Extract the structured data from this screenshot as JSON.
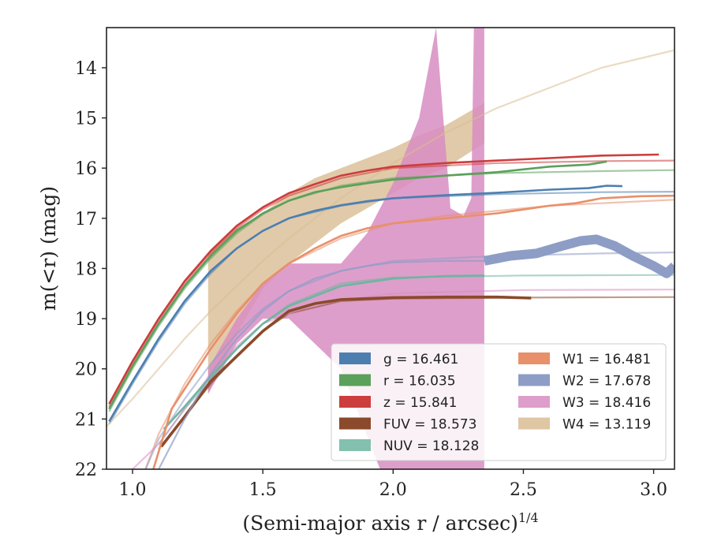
{
  "chart_data": {
    "type": "line",
    "title": "",
    "xlabel": "(Semi-major axis r / arcsec)",
    "xlabel_sup": "1/4",
    "ylabel": "m(<r) (mag)",
    "xlim": [
      0.9,
      3.08
    ],
    "ylim": [
      22.0,
      13.2
    ],
    "y_inverted": true,
    "grid": false,
    "legend_placement": "lower-right",
    "x_ticks": [
      "1.0",
      "1.5",
      "2.0",
      "2.5",
      "3.0"
    ],
    "x_tick_values": [
      1.0,
      1.5,
      2.0,
      2.5,
      3.0
    ],
    "y_ticks": [
      "14",
      "15",
      "16",
      "17",
      "18",
      "19",
      "20",
      "21",
      "22"
    ],
    "y_tick_values": [
      14,
      15,
      16,
      17,
      18,
      19,
      20,
      21,
      22
    ],
    "series": [
      {
        "name": "g",
        "legend": "g = 16.461",
        "color": "#4c7fb0",
        "data": [
          [
            0.91,
            21.05
          ],
          [
            1.0,
            20.25
          ],
          [
            1.1,
            19.4
          ],
          [
            1.2,
            18.65
          ],
          [
            1.3,
            18.05
          ],
          [
            1.4,
            17.6
          ],
          [
            1.5,
            17.25
          ],
          [
            1.6,
            17.0
          ],
          [
            1.7,
            16.85
          ],
          [
            1.8,
            16.74
          ],
          [
            1.9,
            16.66
          ],
          [
            2.0,
            16.6
          ],
          [
            2.2,
            16.54
          ],
          [
            2.4,
            16.49
          ],
          [
            2.6,
            16.43
          ],
          [
            2.75,
            16.4
          ],
          [
            2.82,
            16.35
          ],
          [
            2.88,
            16.36
          ]
        ],
        "model": [
          [
            0.91,
            21.1
          ],
          [
            1.0,
            20.3
          ],
          [
            1.1,
            19.45
          ],
          [
            1.2,
            18.7
          ],
          [
            1.3,
            18.1
          ],
          [
            1.4,
            17.6
          ],
          [
            1.5,
            17.25
          ],
          [
            1.6,
            17.0
          ],
          [
            1.8,
            16.75
          ],
          [
            2.0,
            16.6
          ],
          [
            2.4,
            16.52
          ],
          [
            2.8,
            16.48
          ],
          [
            3.08,
            16.47
          ]
        ]
      },
      {
        "name": "r",
        "legend": "r = 16.035",
        "color": "#5ba05b",
        "data": [
          [
            0.91,
            20.8
          ],
          [
            1.0,
            19.95
          ],
          [
            1.1,
            19.1
          ],
          [
            1.2,
            18.35
          ],
          [
            1.3,
            17.75
          ],
          [
            1.4,
            17.25
          ],
          [
            1.5,
            16.9
          ],
          [
            1.6,
            16.65
          ],
          [
            1.7,
            16.48
          ],
          [
            1.8,
            16.38
          ],
          [
            1.9,
            16.3
          ],
          [
            2.0,
            16.23
          ],
          [
            2.2,
            16.15
          ],
          [
            2.4,
            16.08
          ],
          [
            2.6,
            15.97
          ],
          [
            2.75,
            15.93
          ],
          [
            2.82,
            15.87
          ]
        ],
        "model": [
          [
            0.91,
            20.85
          ],
          [
            1.0,
            20.0
          ],
          [
            1.1,
            19.15
          ],
          [
            1.2,
            18.4
          ],
          [
            1.3,
            17.8
          ],
          [
            1.4,
            17.3
          ],
          [
            1.5,
            16.92
          ],
          [
            1.6,
            16.65
          ],
          [
            1.8,
            16.35
          ],
          [
            2.0,
            16.2
          ],
          [
            2.4,
            16.1
          ],
          [
            2.8,
            16.06
          ],
          [
            3.08,
            16.04
          ]
        ]
      },
      {
        "name": "z",
        "legend": "z = 15.841",
        "color": "#cc3d3d",
        "data": [
          [
            0.91,
            20.7
          ],
          [
            1.0,
            19.85
          ],
          [
            1.1,
            19.0
          ],
          [
            1.2,
            18.25
          ],
          [
            1.3,
            17.65
          ],
          [
            1.4,
            17.15
          ],
          [
            1.5,
            16.78
          ],
          [
            1.6,
            16.5
          ],
          [
            1.7,
            16.32
          ],
          [
            1.8,
            16.15
          ],
          [
            1.9,
            16.05
          ],
          [
            2.0,
            15.97
          ],
          [
            2.2,
            15.9
          ],
          [
            2.4,
            15.85
          ],
          [
            2.6,
            15.8
          ],
          [
            2.8,
            15.75
          ],
          [
            3.02,
            15.73
          ]
        ],
        "model": [
          [
            0.91,
            20.75
          ],
          [
            1.0,
            19.9
          ],
          [
            1.1,
            19.05
          ],
          [
            1.2,
            18.3
          ],
          [
            1.3,
            17.7
          ],
          [
            1.4,
            17.2
          ],
          [
            1.5,
            16.82
          ],
          [
            1.6,
            16.55
          ],
          [
            1.8,
            16.2
          ],
          [
            2.0,
            16.0
          ],
          [
            2.4,
            15.9
          ],
          [
            2.8,
            15.86
          ],
          [
            3.08,
            15.85
          ]
        ]
      },
      {
        "name": "FUV",
        "legend": "FUV = 18.573",
        "color": "#8b4a2b",
        "data": [
          [
            1.11,
            21.55
          ],
          [
            1.2,
            20.95
          ],
          [
            1.3,
            20.25
          ],
          [
            1.4,
            19.75
          ],
          [
            1.5,
            19.25
          ],
          [
            1.6,
            18.85
          ],
          [
            1.7,
            18.7
          ],
          [
            1.8,
            18.62
          ],
          [
            2.0,
            18.58
          ],
          [
            2.2,
            18.57
          ],
          [
            2.4,
            18.57
          ],
          [
            2.53,
            18.59
          ]
        ],
        "model": [
          [
            1.1,
            21.6
          ],
          [
            1.2,
            20.95
          ],
          [
            1.3,
            20.3
          ],
          [
            1.4,
            19.75
          ],
          [
            1.5,
            19.25
          ],
          [
            1.6,
            18.9
          ],
          [
            1.8,
            18.65
          ],
          [
            2.0,
            18.6
          ],
          [
            2.5,
            18.58
          ],
          [
            3.08,
            18.57
          ]
        ]
      },
      {
        "name": "NUV",
        "legend": "NUV = 18.128",
        "color": "#6fb5a0",
        "data": [
          [
            1.12,
            21.2
          ],
          [
            1.2,
            20.75
          ],
          [
            1.3,
            20.15
          ],
          [
            1.4,
            19.6
          ],
          [
            1.5,
            19.1
          ],
          [
            1.6,
            18.75
          ],
          [
            1.7,
            18.55
          ],
          [
            1.8,
            18.35
          ],
          [
            2.0,
            18.2
          ],
          [
            2.2,
            18.15
          ],
          [
            2.35,
            18.14
          ]
        ],
        "model": [
          [
            1.1,
            21.5
          ],
          [
            1.2,
            20.8
          ],
          [
            1.3,
            20.2
          ],
          [
            1.4,
            19.6
          ],
          [
            1.5,
            19.1
          ],
          [
            1.6,
            18.72
          ],
          [
            1.8,
            18.3
          ],
          [
            2.0,
            18.18
          ],
          [
            2.5,
            18.14
          ],
          [
            3.08,
            18.13
          ]
        ]
      },
      {
        "name": "W1",
        "legend": "W1 = 16.481",
        "color": "#e8906a",
        "data": [
          [
            1.08,
            22.0
          ],
          [
            1.15,
            20.8
          ],
          [
            1.3,
            19.6
          ],
          [
            1.4,
            18.9
          ],
          [
            1.5,
            18.3
          ],
          [
            1.6,
            17.9
          ],
          [
            1.7,
            17.6
          ],
          [
            1.8,
            17.35
          ],
          [
            1.9,
            17.2
          ],
          [
            2.0,
            17.1
          ],
          [
            2.2,
            17.0
          ],
          [
            2.4,
            16.9
          ],
          [
            2.6,
            16.75
          ],
          [
            2.7,
            16.7
          ],
          [
            2.8,
            16.6
          ],
          [
            2.95,
            16.56
          ],
          [
            3.08,
            16.55
          ]
        ],
        "model": [
          [
            1.05,
            22.0
          ],
          [
            1.1,
            21.3
          ],
          [
            1.2,
            20.3
          ],
          [
            1.3,
            19.5
          ],
          [
            1.4,
            18.85
          ],
          [
            1.5,
            18.3
          ],
          [
            1.6,
            17.9
          ],
          [
            1.8,
            17.4
          ],
          [
            2.0,
            17.1
          ],
          [
            2.2,
            16.95
          ],
          [
            2.6,
            16.75
          ],
          [
            3.0,
            16.65
          ],
          [
            3.08,
            16.63
          ]
        ]
      },
      {
        "name": "W2",
        "legend": "W2 = 17.678",
        "color": "#8e9dc6",
        "data": [
          [
            1.1,
            22.0
          ],
          [
            1.2,
            21.0
          ],
          [
            1.3,
            20.1
          ],
          [
            1.4,
            19.4
          ],
          [
            1.5,
            18.85
          ],
          [
            1.6,
            18.45
          ],
          [
            1.7,
            18.2
          ],
          [
            1.8,
            18.05
          ],
          [
            1.9,
            17.95
          ],
          [
            2.0,
            17.88
          ],
          [
            2.2,
            17.85
          ],
          [
            2.35,
            17.85
          ],
          [
            2.45,
            17.75
          ],
          [
            2.55,
            17.7
          ],
          [
            2.65,
            17.55
          ],
          [
            2.72,
            17.45
          ],
          [
            2.78,
            17.42
          ],
          [
            2.85,
            17.55
          ],
          [
            2.92,
            17.75
          ],
          [
            3.0,
            17.95
          ],
          [
            3.05,
            18.1
          ],
          [
            3.08,
            17.95
          ]
        ],
        "band_width": 0.18,
        "model": [
          [
            1.05,
            22.0
          ],
          [
            1.1,
            21.4
          ],
          [
            1.2,
            20.6
          ],
          [
            1.3,
            19.9
          ],
          [
            1.4,
            19.3
          ],
          [
            1.5,
            18.8
          ],
          [
            1.6,
            18.45
          ],
          [
            1.8,
            18.05
          ],
          [
            2.0,
            17.85
          ],
          [
            2.4,
            17.75
          ],
          [
            2.8,
            17.7
          ],
          [
            3.08,
            17.68
          ]
        ]
      },
      {
        "name": "W3",
        "legend": "W3 = 18.416",
        "color": "#d88dc2",
        "data_upper": [
          [
            1.29,
            20.0
          ],
          [
            1.4,
            19.0
          ],
          [
            1.5,
            18.3
          ],
          [
            1.6,
            17.9
          ],
          [
            1.8,
            17.9
          ],
          [
            1.9,
            17.3
          ],
          [
            2.0,
            16.3
          ],
          [
            2.1,
            15.0
          ],
          [
            2.165,
            13.2
          ],
          [
            2.22,
            16.8
          ],
          [
            2.27,
            16.95
          ],
          [
            2.3,
            16.6
          ],
          [
            2.31,
            13.2
          ],
          [
            2.35,
            13.2
          ]
        ],
        "data_lower": [
          [
            2.35,
            22.0
          ],
          [
            2.3,
            22.0
          ],
          [
            2.28,
            22.0
          ],
          [
            2.22,
            22.0
          ],
          [
            2.1,
            22.0
          ],
          [
            1.95,
            22.0
          ],
          [
            1.8,
            20.0
          ],
          [
            1.7,
            19.5
          ],
          [
            1.6,
            19.0
          ],
          [
            1.5,
            19.0
          ],
          [
            1.4,
            19.5
          ],
          [
            1.29,
            20.5
          ]
        ],
        "model": [
          [
            1.0,
            22.0
          ],
          [
            1.1,
            21.5
          ],
          [
            1.2,
            20.8
          ],
          [
            1.3,
            20.1
          ],
          [
            1.4,
            19.55
          ],
          [
            1.5,
            19.1
          ],
          [
            1.7,
            18.7
          ],
          [
            2.0,
            18.5
          ],
          [
            2.5,
            18.43
          ],
          [
            3.08,
            18.42
          ]
        ]
      },
      {
        "name": "W4",
        "legend": "W4 = 13.119",
        "color": "#d9bd94",
        "data_upper": [
          [
            1.29,
            17.7
          ],
          [
            1.4,
            17.2
          ],
          [
            1.5,
            16.9
          ],
          [
            1.6,
            16.5
          ],
          [
            1.7,
            16.2
          ],
          [
            1.8,
            16.0
          ],
          [
            1.9,
            15.8
          ],
          [
            2.0,
            15.6
          ],
          [
            2.1,
            15.35
          ],
          [
            2.2,
            15.15
          ],
          [
            2.35,
            14.7
          ]
        ],
        "data_lower": [
          [
            2.35,
            15.5
          ],
          [
            2.2,
            16.0
          ],
          [
            2.1,
            16.2
          ],
          [
            2.0,
            16.5
          ],
          [
            1.9,
            16.8
          ],
          [
            1.8,
            17.1
          ],
          [
            1.7,
            17.5
          ],
          [
            1.6,
            17.9
          ],
          [
            1.5,
            18.4
          ],
          [
            1.4,
            19.3
          ],
          [
            1.29,
            20.5
          ]
        ],
        "model": [
          [
            0.9,
            21.15
          ],
          [
            1.0,
            20.6
          ],
          [
            1.1,
            20.0
          ],
          [
            1.2,
            19.4
          ],
          [
            1.3,
            18.85
          ],
          [
            1.4,
            18.35
          ],
          [
            1.5,
            17.85
          ],
          [
            1.6,
            17.4
          ],
          [
            1.7,
            17.0
          ],
          [
            1.8,
            16.6
          ],
          [
            1.9,
            16.25
          ],
          [
            2.0,
            15.9
          ],
          [
            2.2,
            15.3
          ],
          [
            2.4,
            14.8
          ],
          [
            2.6,
            14.4
          ],
          [
            2.8,
            14.0
          ],
          [
            3.0,
            13.75
          ],
          [
            3.08,
            13.65
          ]
        ]
      }
    ]
  }
}
